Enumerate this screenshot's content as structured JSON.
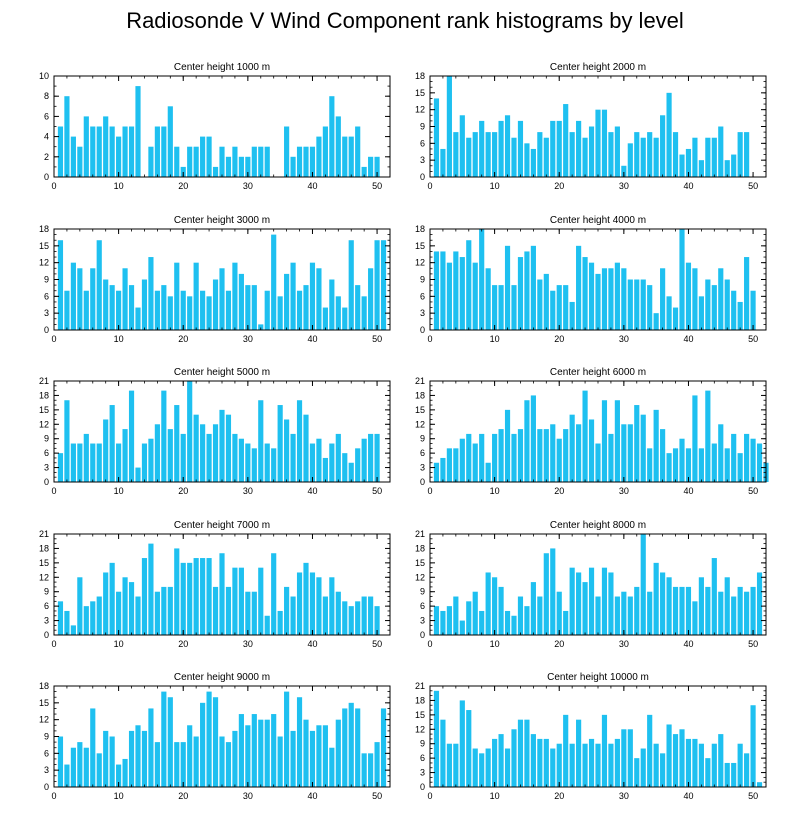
{
  "title": "Radiosonde V Wind Component rank histograms by level",
  "colors": {
    "bar": "#1ec0f0",
    "axis": "#000000"
  },
  "chart_data": [
    {
      "type": "bar",
      "title": "Center height 1000 m",
      "xlim": [
        0,
        52
      ],
      "ylim": [
        0,
        10
      ],
      "xticks": [
        0,
        10,
        20,
        30,
        40,
        50
      ],
      "yticks": [
        0,
        2,
        4,
        6,
        8,
        10
      ],
      "values": [
        5,
        8,
        4,
        3,
        6,
        5,
        5,
        6,
        5,
        4,
        5,
        5,
        9,
        0,
        3,
        5,
        5,
        7,
        3,
        1,
        3,
        3,
        4,
        4,
        1,
        3,
        2,
        3,
        2,
        2,
        3,
        3,
        3,
        0,
        0,
        5,
        2,
        3,
        3,
        3,
        4,
        5,
        8,
        6,
        4,
        4,
        5,
        1,
        2,
        2
      ]
    },
    {
      "type": "bar",
      "title": "Center height 2000 m",
      "xlim": [
        0,
        52
      ],
      "ylim": [
        0,
        18
      ],
      "xticks": [
        0,
        10,
        20,
        30,
        40,
        50
      ],
      "yticks": [
        0,
        3,
        6,
        9,
        12,
        15,
        18
      ],
      "values": [
        14,
        5,
        18,
        8,
        11,
        7,
        8,
        10,
        8,
        8,
        10,
        11,
        7,
        10,
        6,
        5,
        8,
        7,
        10,
        10,
        13,
        8,
        10,
        7,
        9,
        12,
        12,
        8,
        9,
        2,
        6,
        8,
        7,
        8,
        7,
        11,
        15,
        8,
        4,
        5,
        7,
        3,
        7,
        7,
        9,
        3,
        4,
        8,
        8
      ]
    },
    {
      "type": "bar",
      "title": "Center height 3000 m",
      "xlim": [
        0,
        52
      ],
      "ylim": [
        0,
        18
      ],
      "xticks": [
        0,
        10,
        20,
        30,
        40,
        50
      ],
      "yticks": [
        0,
        3,
        6,
        9,
        12,
        15,
        18
      ],
      "values": [
        16,
        7,
        12,
        11,
        7,
        11,
        16,
        9,
        8,
        7,
        11,
        8,
        4,
        9,
        13,
        7,
        8,
        6,
        12,
        7,
        6,
        12,
        7,
        6,
        9,
        11,
        7,
        12,
        10,
        8,
        8,
        1,
        7,
        17,
        6,
        10,
        12,
        7,
        8,
        12,
        11,
        4,
        9,
        6,
        4,
        16,
        8,
        6,
        11,
        16,
        16
      ]
    },
    {
      "type": "bar",
      "title": "Center height 4000 m",
      "xlim": [
        0,
        52
      ],
      "ylim": [
        0,
        18
      ],
      "xticks": [
        0,
        10,
        20,
        30,
        40,
        50
      ],
      "yticks": [
        0,
        3,
        6,
        9,
        12,
        15,
        18
      ],
      "values": [
        14,
        14,
        12,
        14,
        13,
        16,
        12,
        18,
        11,
        8,
        8,
        15,
        8,
        13,
        14,
        15,
        9,
        10,
        7,
        8,
        8,
        5,
        15,
        13,
        12,
        10,
        11,
        11,
        12,
        11,
        9,
        9,
        9,
        8,
        3,
        11,
        6,
        4,
        18,
        12,
        11,
        6,
        9,
        8,
        11,
        9,
        7,
        5,
        13,
        7
      ]
    },
    {
      "type": "bar",
      "title": "Center height 5000 m",
      "xlim": [
        0,
        52
      ],
      "ylim": [
        0,
        21
      ],
      "xticks": [
        0,
        10,
        20,
        30,
        40,
        50
      ],
      "yticks": [
        0,
        3,
        6,
        9,
        12,
        15,
        18,
        21
      ],
      "values": [
        6,
        17,
        8,
        8,
        10,
        8,
        8,
        13,
        16,
        8,
        11,
        19,
        3,
        8,
        9,
        12,
        19,
        11,
        16,
        10,
        21,
        14,
        12,
        10,
        12,
        15,
        14,
        10,
        9,
        8,
        7,
        17,
        8,
        7,
        16,
        13,
        10,
        17,
        14,
        8,
        9,
        5,
        8,
        10,
        6,
        4,
        7,
        9,
        10,
        10
      ]
    },
    {
      "type": "bar",
      "title": "Center height 6000 m",
      "xlim": [
        0,
        52
      ],
      "ylim": [
        0,
        21
      ],
      "xticks": [
        0,
        10,
        20,
        30,
        40,
        50
      ],
      "yticks": [
        0,
        3,
        6,
        9,
        12,
        15,
        18,
        21
      ],
      "values": [
        4,
        5,
        7,
        7,
        9,
        10,
        8,
        10,
        4,
        10,
        11,
        15,
        10,
        11,
        17,
        18,
        11,
        11,
        12,
        9,
        11,
        14,
        12,
        19,
        13,
        8,
        17,
        10,
        17,
        12,
        12,
        16,
        14,
        7,
        15,
        11,
        6,
        7,
        9,
        7,
        18,
        7,
        19,
        8,
        12,
        7,
        10,
        6,
        10,
        9,
        8,
        4
      ]
    },
    {
      "type": "bar",
      "title": "Center height 7000 m",
      "xlim": [
        0,
        52
      ],
      "ylim": [
        0,
        21
      ],
      "xticks": [
        0,
        10,
        20,
        30,
        40,
        50
      ],
      "yticks": [
        0,
        3,
        6,
        9,
        12,
        15,
        18,
        21
      ],
      "values": [
        7,
        5,
        2,
        12,
        6,
        7,
        8,
        13,
        15,
        9,
        12,
        11,
        8,
        16,
        19,
        9,
        10,
        10,
        18,
        15,
        15,
        16,
        16,
        16,
        10,
        17,
        10,
        14,
        14,
        9,
        9,
        14,
        4,
        17,
        5,
        10,
        8,
        13,
        15,
        13,
        12,
        8,
        12,
        9,
        7,
        6,
        7,
        8,
        8,
        6
      ]
    },
    {
      "type": "bar",
      "title": "Center height 8000 m",
      "xlim": [
        0,
        52
      ],
      "ylim": [
        0,
        21
      ],
      "xticks": [
        0,
        10,
        20,
        30,
        40,
        50
      ],
      "yticks": [
        0,
        3,
        6,
        9,
        12,
        15,
        18,
        21
      ],
      "values": [
        6,
        5,
        6,
        8,
        3,
        7,
        9,
        5,
        13,
        12,
        10,
        5,
        4,
        8,
        6,
        11,
        8,
        17,
        18,
        9,
        5,
        14,
        13,
        11,
        14,
        8,
        14,
        13,
        8,
        9,
        8,
        10,
        21,
        9,
        15,
        13,
        12,
        10,
        10,
        10,
        7,
        12,
        10,
        16,
        9,
        12,
        8,
        10,
        9,
        10,
        13
      ]
    },
    {
      "type": "bar",
      "title": "Center height 9000 m",
      "xlim": [
        0,
        52
      ],
      "ylim": [
        0,
        18
      ],
      "xticks": [
        0,
        10,
        20,
        30,
        40,
        50
      ],
      "yticks": [
        0,
        3,
        6,
        9,
        12,
        15,
        18
      ],
      "values": [
        9,
        4,
        7,
        8,
        7,
        14,
        6,
        10,
        9,
        4,
        5,
        10,
        11,
        10,
        14,
        8,
        17,
        16,
        8,
        8,
        11,
        9,
        15,
        17,
        16,
        9,
        8,
        10,
        13,
        11,
        13,
        12,
        12,
        13,
        9,
        17,
        10,
        16,
        12,
        10,
        11,
        11,
        7,
        12,
        14,
        15,
        14,
        6,
        6,
        8,
        14
      ]
    },
    {
      "type": "bar",
      "title": "Center height 10000 m",
      "xlim": [
        0,
        52
      ],
      "ylim": [
        0,
        21
      ],
      "xticks": [
        0,
        10,
        20,
        30,
        40,
        50
      ],
      "yticks": [
        0,
        3,
        6,
        9,
        12,
        15,
        18,
        21
      ],
      "values": [
        20,
        14,
        9,
        9,
        18,
        16,
        8,
        7,
        8,
        10,
        11,
        8,
        12,
        14,
        14,
        11,
        10,
        10,
        8,
        9,
        15,
        9,
        14,
        9,
        10,
        9,
        15,
        9,
        10,
        12,
        12,
        6,
        8,
        15,
        9,
        7,
        13,
        11,
        12,
        10,
        10,
        9,
        6,
        9,
        11,
        5,
        5,
        9,
        7,
        17,
        1
      ]
    }
  ]
}
